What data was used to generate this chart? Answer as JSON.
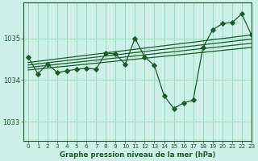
{
  "title": "Graphe pression niveau de la mer (hPa)",
  "bg_color": "#cdf0e8",
  "grid_color": "#99ddbb",
  "line_color": "#1a5c2a",
  "xlim": [
    -0.5,
    23
  ],
  "ylim": [
    1032.55,
    1035.85
  ],
  "yticks": [
    1033,
    1034,
    1035
  ],
  "xticks": [
    0,
    1,
    2,
    3,
    4,
    5,
    6,
    7,
    8,
    9,
    10,
    11,
    12,
    13,
    14,
    15,
    16,
    17,
    18,
    19,
    20,
    21,
    22,
    23
  ],
  "main_series_x": [
    0,
    1,
    2,
    3,
    4,
    5,
    6,
    7,
    8,
    9,
    10,
    11,
    12,
    13,
    14,
    15,
    16,
    17,
    18,
    19,
    20,
    21,
    22,
    23
  ],
  "main_series_y": [
    1034.55,
    1034.15,
    1034.38,
    1034.18,
    1034.22,
    1034.26,
    1034.28,
    1034.26,
    1034.65,
    1034.62,
    1034.38,
    1035.0,
    1034.55,
    1034.35,
    1033.62,
    1033.32,
    1033.45,
    1033.52,
    1034.78,
    1035.2,
    1035.35,
    1035.38,
    1035.58,
    1035.08
  ],
  "trend_lines": [
    {
      "x0": 0,
      "y0": 1034.42,
      "x1": 23,
      "y1": 1035.08
    },
    {
      "x0": 0,
      "y0": 1034.36,
      "x1": 23,
      "y1": 1034.98
    },
    {
      "x0": 0,
      "y0": 1034.3,
      "x1": 23,
      "y1": 1034.88
    },
    {
      "x0": 0,
      "y0": 1034.24,
      "x1": 23,
      "y1": 1034.78
    }
  ],
  "figsize": [
    3.2,
    2.0
  ],
  "dpi": 100
}
